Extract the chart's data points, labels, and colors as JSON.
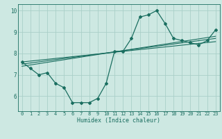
{
  "title": "",
  "xlabel": "Humidex (Indice chaleur)",
  "bg_color": "#cde8e2",
  "line_color": "#1a6e60",
  "grid_color": "#aacfc8",
  "xlim": [
    -0.5,
    23.5
  ],
  "ylim": [
    5.3,
    10.3
  ],
  "xticks": [
    0,
    1,
    2,
    3,
    4,
    5,
    6,
    7,
    8,
    9,
    10,
    11,
    12,
    13,
    14,
    15,
    16,
    17,
    18,
    19,
    20,
    21,
    22,
    23
  ],
  "yticks": [
    6,
    7,
    8,
    9,
    10
  ],
  "main_data_x": [
    0,
    1,
    2,
    3,
    4,
    5,
    6,
    7,
    8,
    9,
    10,
    11,
    12,
    13,
    14,
    15,
    16,
    17,
    18,
    19,
    20,
    21,
    22,
    23
  ],
  "main_data_y": [
    7.6,
    7.3,
    7.0,
    7.1,
    6.6,
    6.4,
    5.7,
    5.7,
    5.7,
    5.9,
    6.6,
    8.1,
    8.1,
    8.7,
    9.7,
    9.8,
    10.0,
    9.4,
    8.7,
    8.6,
    8.5,
    8.4,
    8.6,
    9.1
  ],
  "line1_x": [
    0,
    23
  ],
  "line1_y": [
    7.6,
    8.55
  ],
  "line2_x": [
    0,
    23
  ],
  "line2_y": [
    7.5,
    8.7
  ],
  "line3_x": [
    0,
    23
  ],
  "line3_y": [
    7.4,
    8.8
  ]
}
